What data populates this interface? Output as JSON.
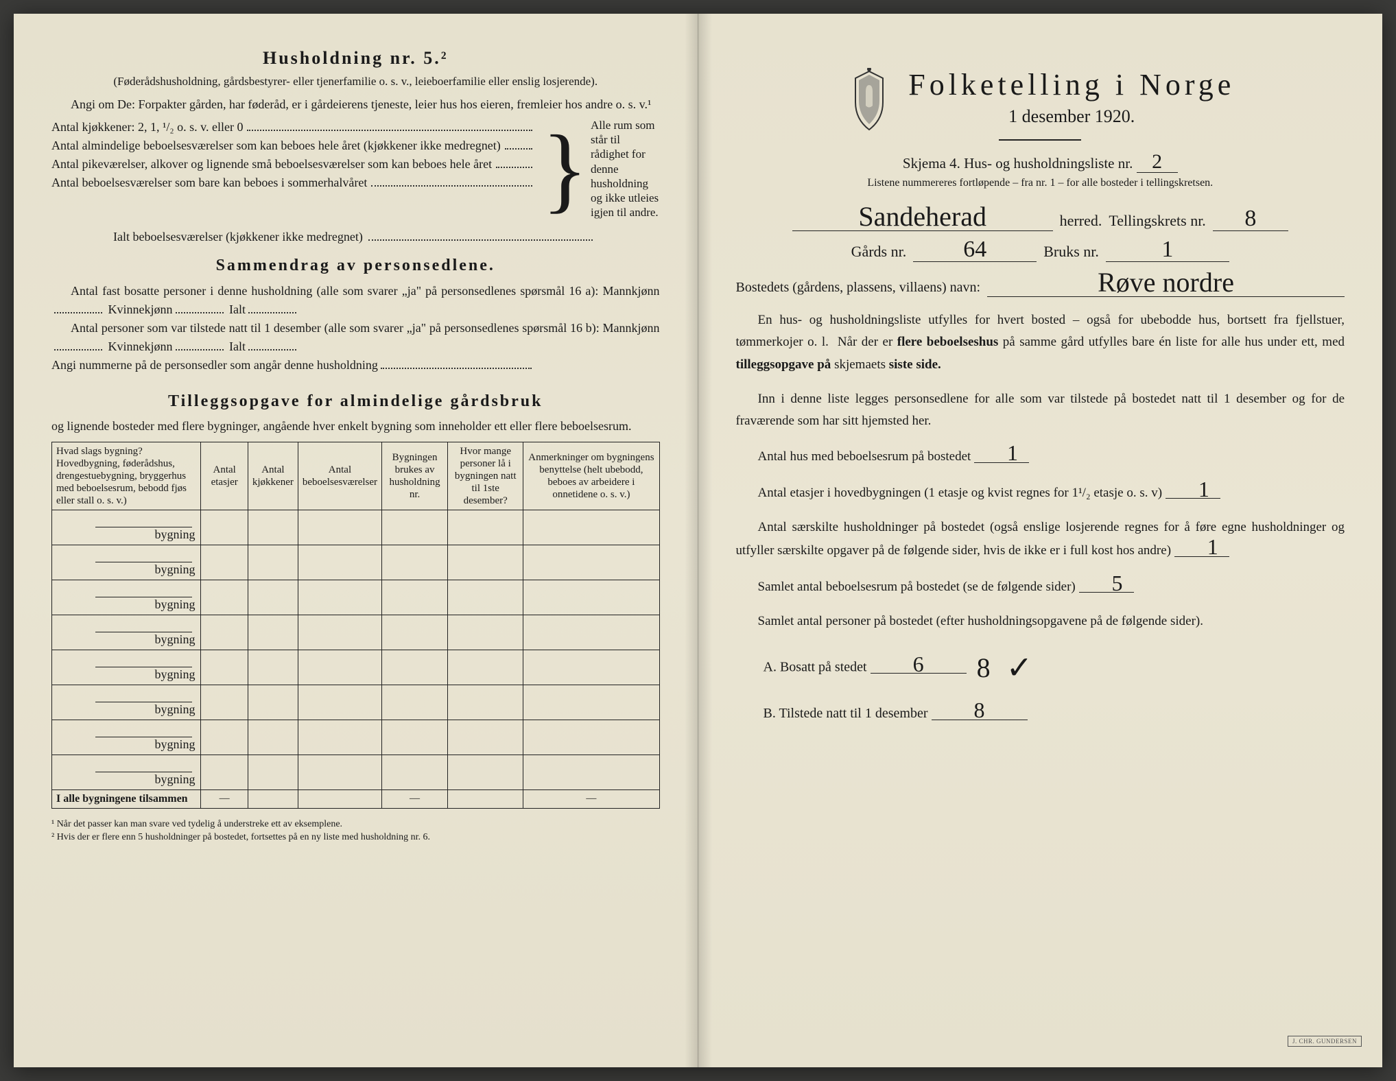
{
  "left": {
    "h5_title": "Husholdning nr. 5.²",
    "h5_sub": "(Føderådshusholdning, gårdsbestyrer- eller tjenerfamilie o. s. v., leieboerfamilie eller enslig losjerende).",
    "h5_text": "Angi om De: Forpakter gården, har føderåd, er i gårdeierens tjeneste, leier hus hos eieren, fremleier hos andre o. s. v.¹",
    "bracket_rows": [
      "Antal kjøkkener: 2, 1, ¹/₂ o. s. v. eller 0",
      "Antal almindelige beboelsesværelser som kan beboes hele året (kjøkkener ikke medregnet)",
      "Antal pikeværelser, alkover og lignende små beboelsesværelser som kan beboes hele året",
      "Antal beboelsesværelser som bare kan beboes i sommerhalvåret"
    ],
    "bracket_right": "Alle rum som står til rådighet for denne husholdning og ikke utleies igjen til andre.",
    "ialt": "Ialt beboelsesværelser (kjøkkener ikke medregnet)",
    "sammendrag_title": "Sammendrag av personsedlene.",
    "samm_line1": "Antal fast bosatte personer i denne husholdning (alle som svarer „ja\" på personsedlenes spørsmål 16 a): Mannkjønn",
    "samm_kv": "Kvinnekjønn",
    "samm_ialt": "Ialt",
    "samm_line2": "Antal personer som var tilstede natt til 1 desember (alle som svarer „ja\" på personsedlenes spørsmål 16 b): Mannkjønn",
    "samm_line3": "Angi nummerne på de personsedler som angår denne husholdning",
    "tillegg_title": "Tilleggsopgave for almindelige gårdsbruk",
    "tillegg_intro": "og lignende bosteder med flere bygninger, angående hver enkelt bygning som inneholder ett eller flere beboelsesrum.",
    "table": {
      "headers": [
        "Hvad slags bygning?\nHovedbygning, føderådshus, drengestuebygning, bryggerhus med beboelsesrum, bebodd fjøs eller stall o. s. v.)",
        "Antal etasjer",
        "Antal kjøkkener",
        "Antal beboelsesværelser",
        "Bygningen brukes av husholdning nr.",
        "Hvor mange personer lå i bygningen natt til 1ste desember?",
        "Anmerkninger om bygningens benyttelse (helt ubebodd, beboes av arbeidere i onnetidene o. s. v.)"
      ],
      "row_suffix": "bygning",
      "row_count": 8,
      "sum_label": "I alle bygningene tilsammen"
    },
    "footnote1": "¹ Når det passer kan man svare ved tydelig å understreke ett av eksemplene.",
    "footnote2": "² Hvis der er flere enn 5 husholdninger på bostedet, fortsettes på en ny liste med husholdning nr. 6."
  },
  "right": {
    "main_title": "Folketelling i Norge",
    "main_date": "1 desember 1920.",
    "skjema_label": "Skjema 4.  Hus- og husholdningsliste nr.",
    "skjema_nr": "2",
    "small_note": "Listene nummereres fortløpende – fra nr. 1 – for alle bosteder i tellingskretsen.",
    "herred_value": "Sandeherad",
    "herred_label": "herred.",
    "krets_label": "Tellingskrets nr.",
    "krets_nr": "8",
    "gards_label": "Gårds nr.",
    "gards_nr": "64",
    "bruks_label": "Bruks nr.",
    "bruks_nr": "1",
    "bosted_label": "Bostedets (gårdens, plassens, villaens) navn:",
    "bosted_value": "Røve nordre",
    "para1": "En hus- og husholdningsliste utfylles for hvert bosted – også for ubebodde hus, bortsett fra fjellstuer, tømmerkojer o. l.  Når der er flere beboelseshus på samme gård utfylles bare én liste for alle hus under ett, med tilleggsopgave på skjemaets siste side.",
    "para2": "Inn i denne liste legges personsedlene for alle som var tilstede på bostedet natt til 1 desember og for de fraværende som har sitt hjemsted her.",
    "q_hus_label": "Antal hus med beboelsesrum på bostedet",
    "q_hus_val": "1",
    "q_etasjer_label_a": "Antal etasjer i hovedbygningen (1 etasje og kvist regnes for 1¹/₂ etasje o. s. v)",
    "q_etasjer_val": "1",
    "q_hush_label": "Antal særskilte husholdninger på bostedet (også enslige losjerende regnes for å føre egne husholdninger og utfyller særskilte opgaver på de følgende sider, hvis de ikke er i full kost hos andre)",
    "q_hush_val": "1",
    "q_rum_label": "Samlet antal beboelsesrum på bostedet (se de følgende sider)",
    "q_rum_val": "5",
    "q_pers_label": "Samlet antal personer på bostedet (efter husholdningsopgavene på de følgende sider).",
    "a_label": "A.  Bosatt på stedet",
    "a_val": "6",
    "b_label": "B.  Tilstede natt til 1 desember",
    "b_val": "8",
    "side_check_num": "8",
    "checkmark": "✓",
    "stamp": "J. CHR. GUNDERSEN"
  },
  "colors": {
    "paper": "#e8e3d0",
    "ink": "#1a1a1a",
    "handwriting": "#2a2a2a"
  }
}
